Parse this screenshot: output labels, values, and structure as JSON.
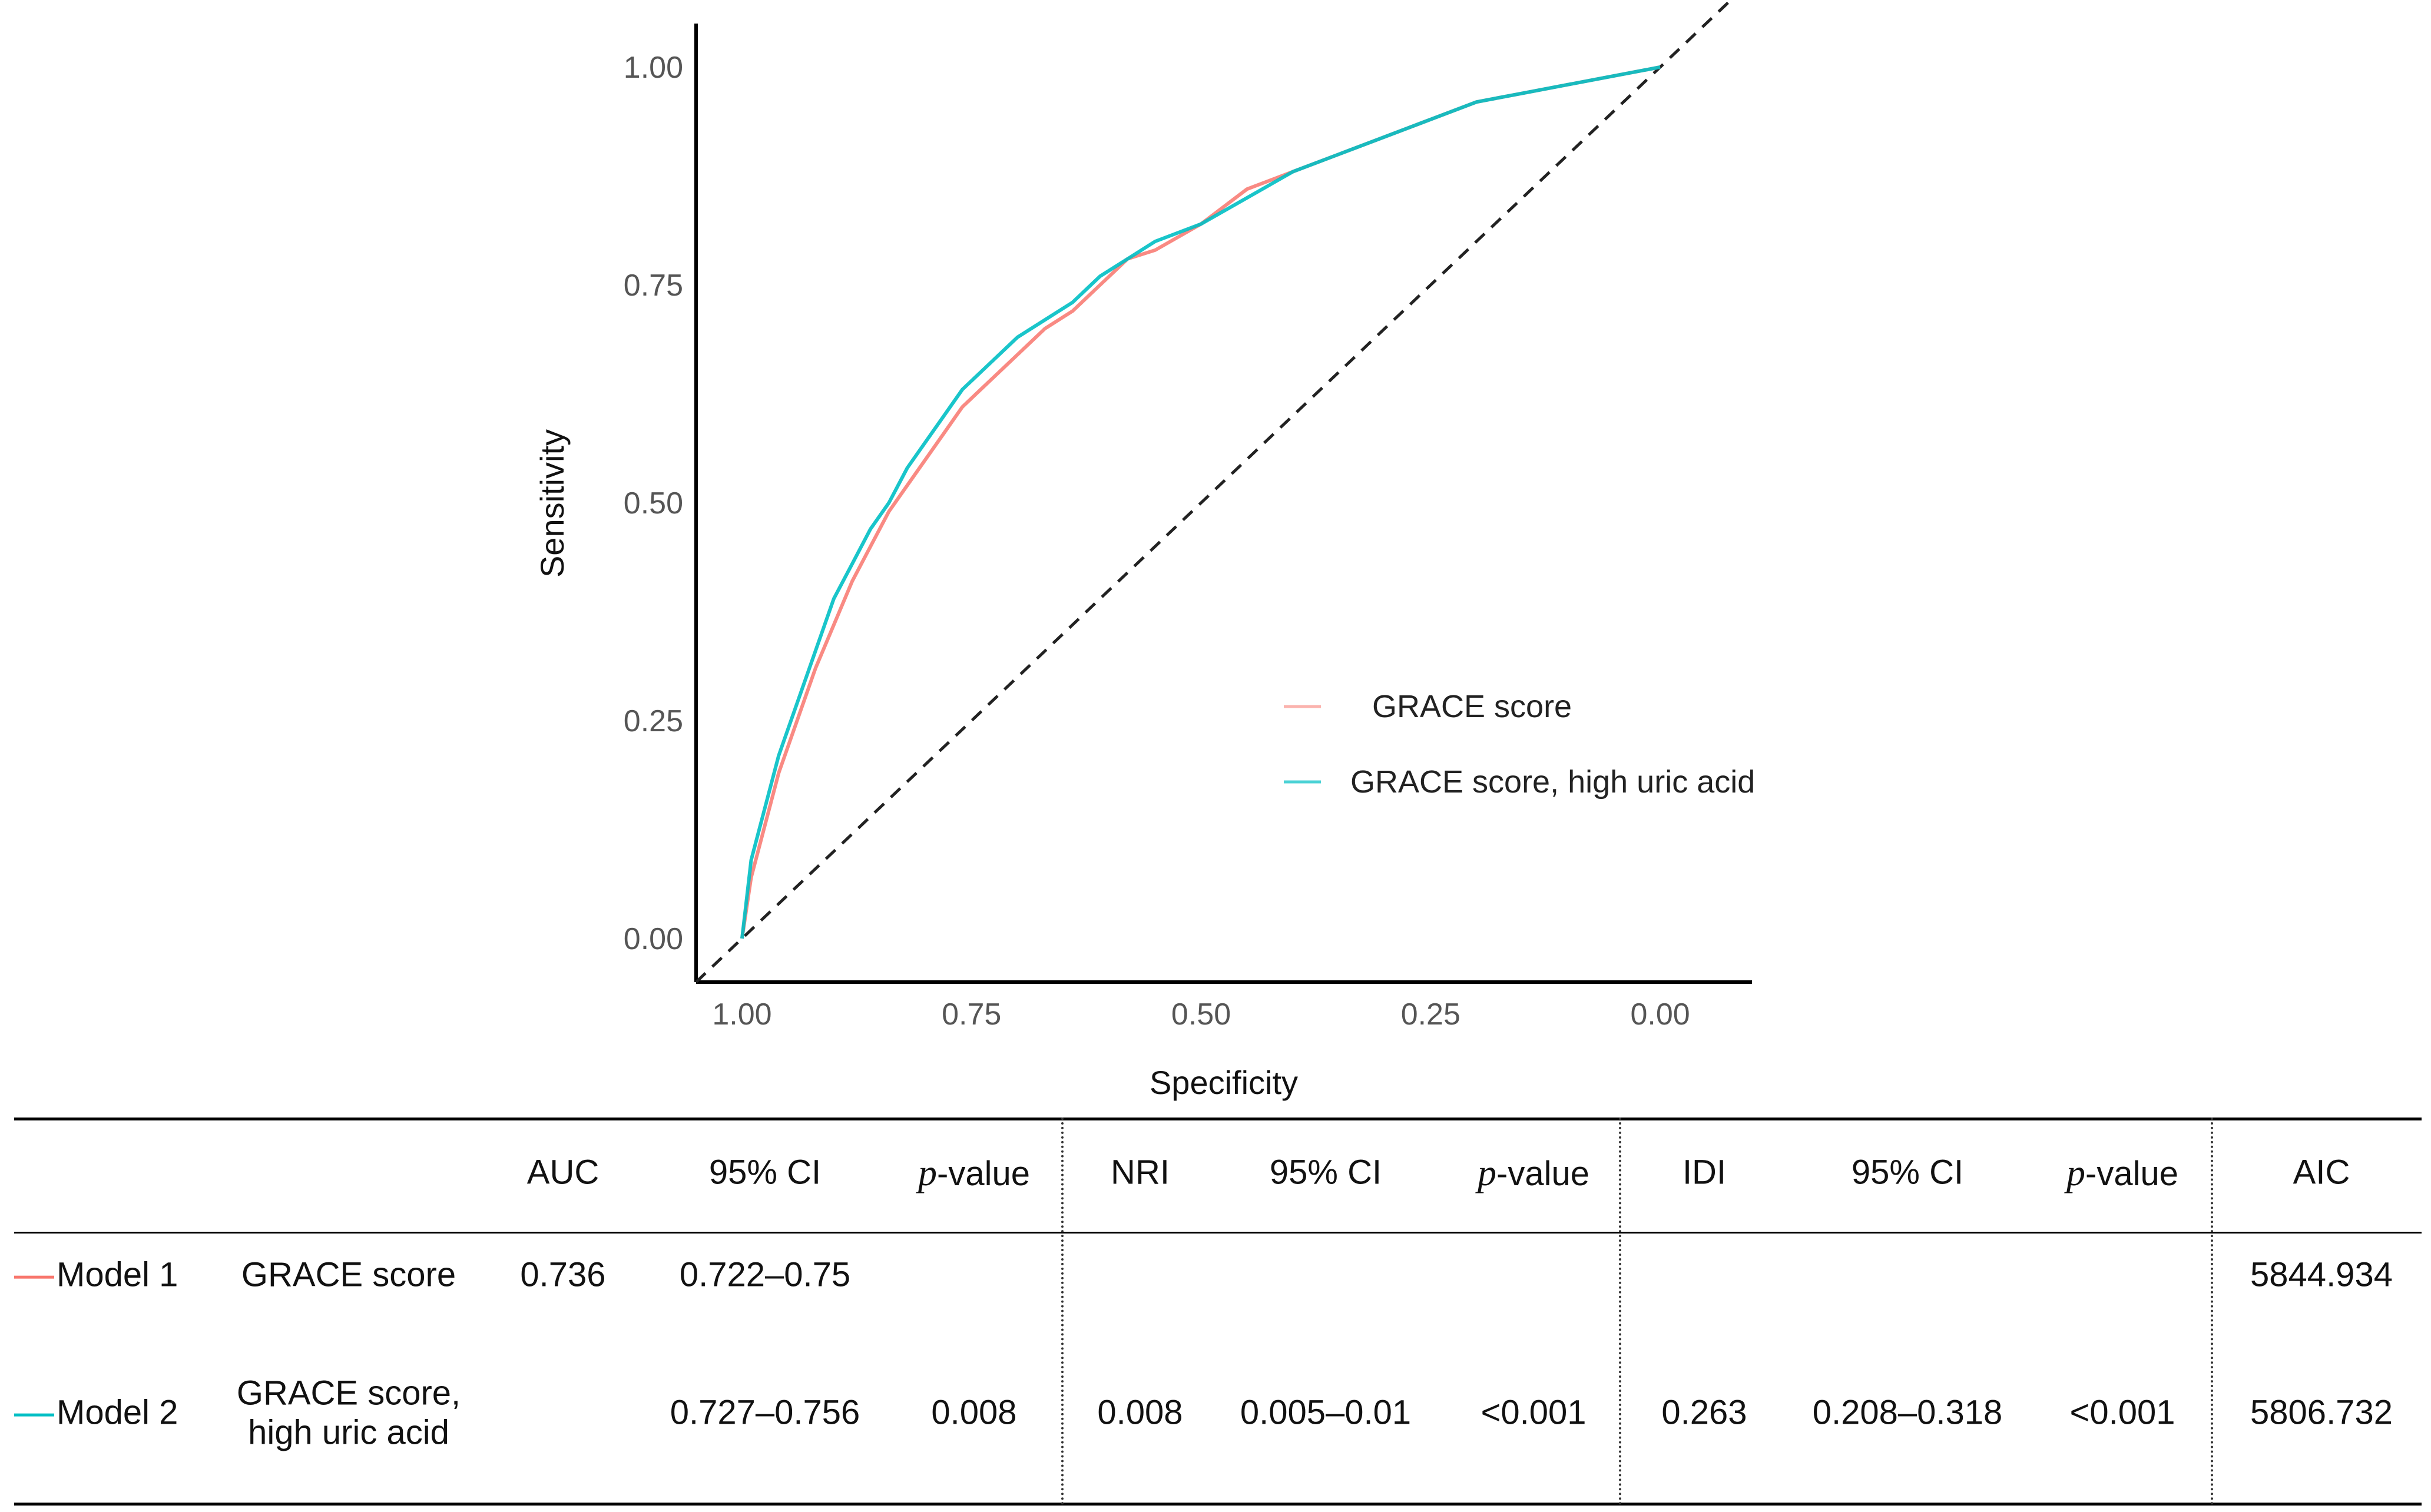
{
  "chart_data": {
    "type": "line",
    "title": "",
    "xlabel": "Specificity",
    "ylabel": "Sensitivity",
    "xlim": [
      1.05,
      -0.1
    ],
    "ylim": [
      -0.05,
      1.05
    ],
    "x_ticks": [
      "1.00",
      "0.75",
      "0.50",
      "0.25",
      "0.00"
    ],
    "y_ticks": [
      "0.00",
      "0.25",
      "0.50",
      "0.75",
      "1.00"
    ],
    "reference_line": {
      "style": "dashed",
      "from": [
        1.0,
        0.0
      ],
      "to": [
        0.0,
        1.0
      ],
      "color": "#222222"
    },
    "legend_position": "right-center",
    "series": [
      {
        "name": "GRACE score",
        "color": "#F8766D",
        "specificity": [
          1.0,
          0.99,
          0.975,
          0.96,
          0.94,
          0.92,
          0.9,
          0.88,
          0.86,
          0.84,
          0.82,
          0.8,
          0.78,
          0.76,
          0.74,
          0.72,
          0.7,
          0.67,
          0.64,
          0.61,
          0.58,
          0.55,
          0.5,
          0.45,
          0.4,
          0.35,
          0.3,
          0.25,
          0.2,
          0.15,
          0.1,
          0.05,
          0.0
        ],
        "sensitivity": [
          0.0,
          0.07,
          0.13,
          0.19,
          0.25,
          0.31,
          0.36,
          0.41,
          0.45,
          0.49,
          0.52,
          0.55,
          0.58,
          0.61,
          0.63,
          0.65,
          0.67,
          0.7,
          0.72,
          0.75,
          0.78,
          0.79,
          0.82,
          0.86,
          0.88,
          0.9,
          0.92,
          0.94,
          0.96,
          0.97,
          0.98,
          0.99,
          1.0
        ]
      },
      {
        "name": "GRACE score, high uric acid",
        "color": "#00BFC4",
        "specificity": [
          1.0,
          0.99,
          0.975,
          0.96,
          0.94,
          0.92,
          0.9,
          0.88,
          0.86,
          0.84,
          0.82,
          0.8,
          0.78,
          0.76,
          0.74,
          0.72,
          0.7,
          0.67,
          0.64,
          0.61,
          0.58,
          0.55,
          0.5,
          0.45,
          0.4,
          0.35,
          0.3,
          0.25,
          0.2,
          0.15,
          0.1,
          0.05,
          0.0
        ],
        "sensitivity": [
          0.0,
          0.09,
          0.15,
          0.21,
          0.27,
          0.33,
          0.39,
          0.43,
          0.47,
          0.5,
          0.54,
          0.57,
          0.6,
          0.63,
          0.65,
          0.67,
          0.69,
          0.71,
          0.73,
          0.76,
          0.78,
          0.8,
          0.82,
          0.85,
          0.88,
          0.9,
          0.92,
          0.94,
          0.96,
          0.97,
          0.98,
          0.99,
          1.0
        ]
      }
    ]
  },
  "table": {
    "headers": {
      "auc": "AUC",
      "ci1": "95% CI",
      "p1_italic": "p",
      "p1_rest": "-value",
      "nri": "NRI",
      "ci2": "95% CI",
      "p2_italic": "p",
      "p2_rest": "-value",
      "idi": "IDI",
      "ci3": "95% CI",
      "p3_italic": "p",
      "p3_rest": "-value",
      "aic": "AIC"
    },
    "rows": [
      {
        "model": "Model 1",
        "color": "#F8766D",
        "label": "GRACE score",
        "auc": "0.736",
        "ci1": "0.722–0.75",
        "aic": "5844.934"
      },
      {
        "model": "Model 2",
        "color": "#00BFC4",
        "label_line1": "GRACE score,",
        "label_line2": "high uric acid",
        "ci1": "0.727–0.756",
        "p1": "0.008",
        "nri": "0.008",
        "ci2": "0.005–0.01",
        "p2": "<0.001",
        "idi": "0.263",
        "ci3": "0.208–0.318",
        "p3": "<0.001",
        "aic": "5806.732"
      }
    ]
  }
}
